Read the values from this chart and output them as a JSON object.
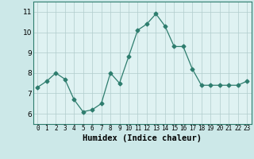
{
  "x": [
    0,
    1,
    2,
    3,
    4,
    5,
    6,
    7,
    8,
    9,
    10,
    11,
    12,
    13,
    14,
    15,
    16,
    17,
    18,
    19,
    20,
    21,
    22,
    23
  ],
  "y": [
    7.3,
    7.6,
    8.0,
    7.7,
    6.7,
    6.1,
    6.2,
    6.5,
    8.0,
    7.5,
    8.8,
    10.1,
    10.4,
    10.9,
    10.3,
    9.3,
    9.3,
    8.2,
    7.4,
    7.4,
    7.4,
    7.4,
    7.4,
    7.6
  ],
  "line_color": "#2e7d6e",
  "marker": "D",
  "marker_size": 2.5,
  "bg_color": "#cce8e8",
  "grid_color_major": "#b0cccc",
  "grid_color_minor": "#d8eeee",
  "plot_bg": "#dff2f2",
  "xlabel": "Humidex (Indice chaleur)",
  "xlabel_fontsize": 7.5,
  "ytick_fontsize": 6.5,
  "xtick_fontsize": 5.5,
  "yticks": [
    6,
    7,
    8,
    9,
    10,
    11
  ],
  "xtick_labels": [
    "0",
    "1",
    "2",
    "3",
    "4",
    "5",
    "6",
    "7",
    "8",
    "9",
    "10",
    "11",
    "12",
    "13",
    "14",
    "15",
    "16",
    "17",
    "18",
    "19",
    "20",
    "21",
    "22",
    "23"
  ],
  "ylim": [
    5.5,
    11.5
  ],
  "xlim": [
    -0.5,
    23.5
  ]
}
